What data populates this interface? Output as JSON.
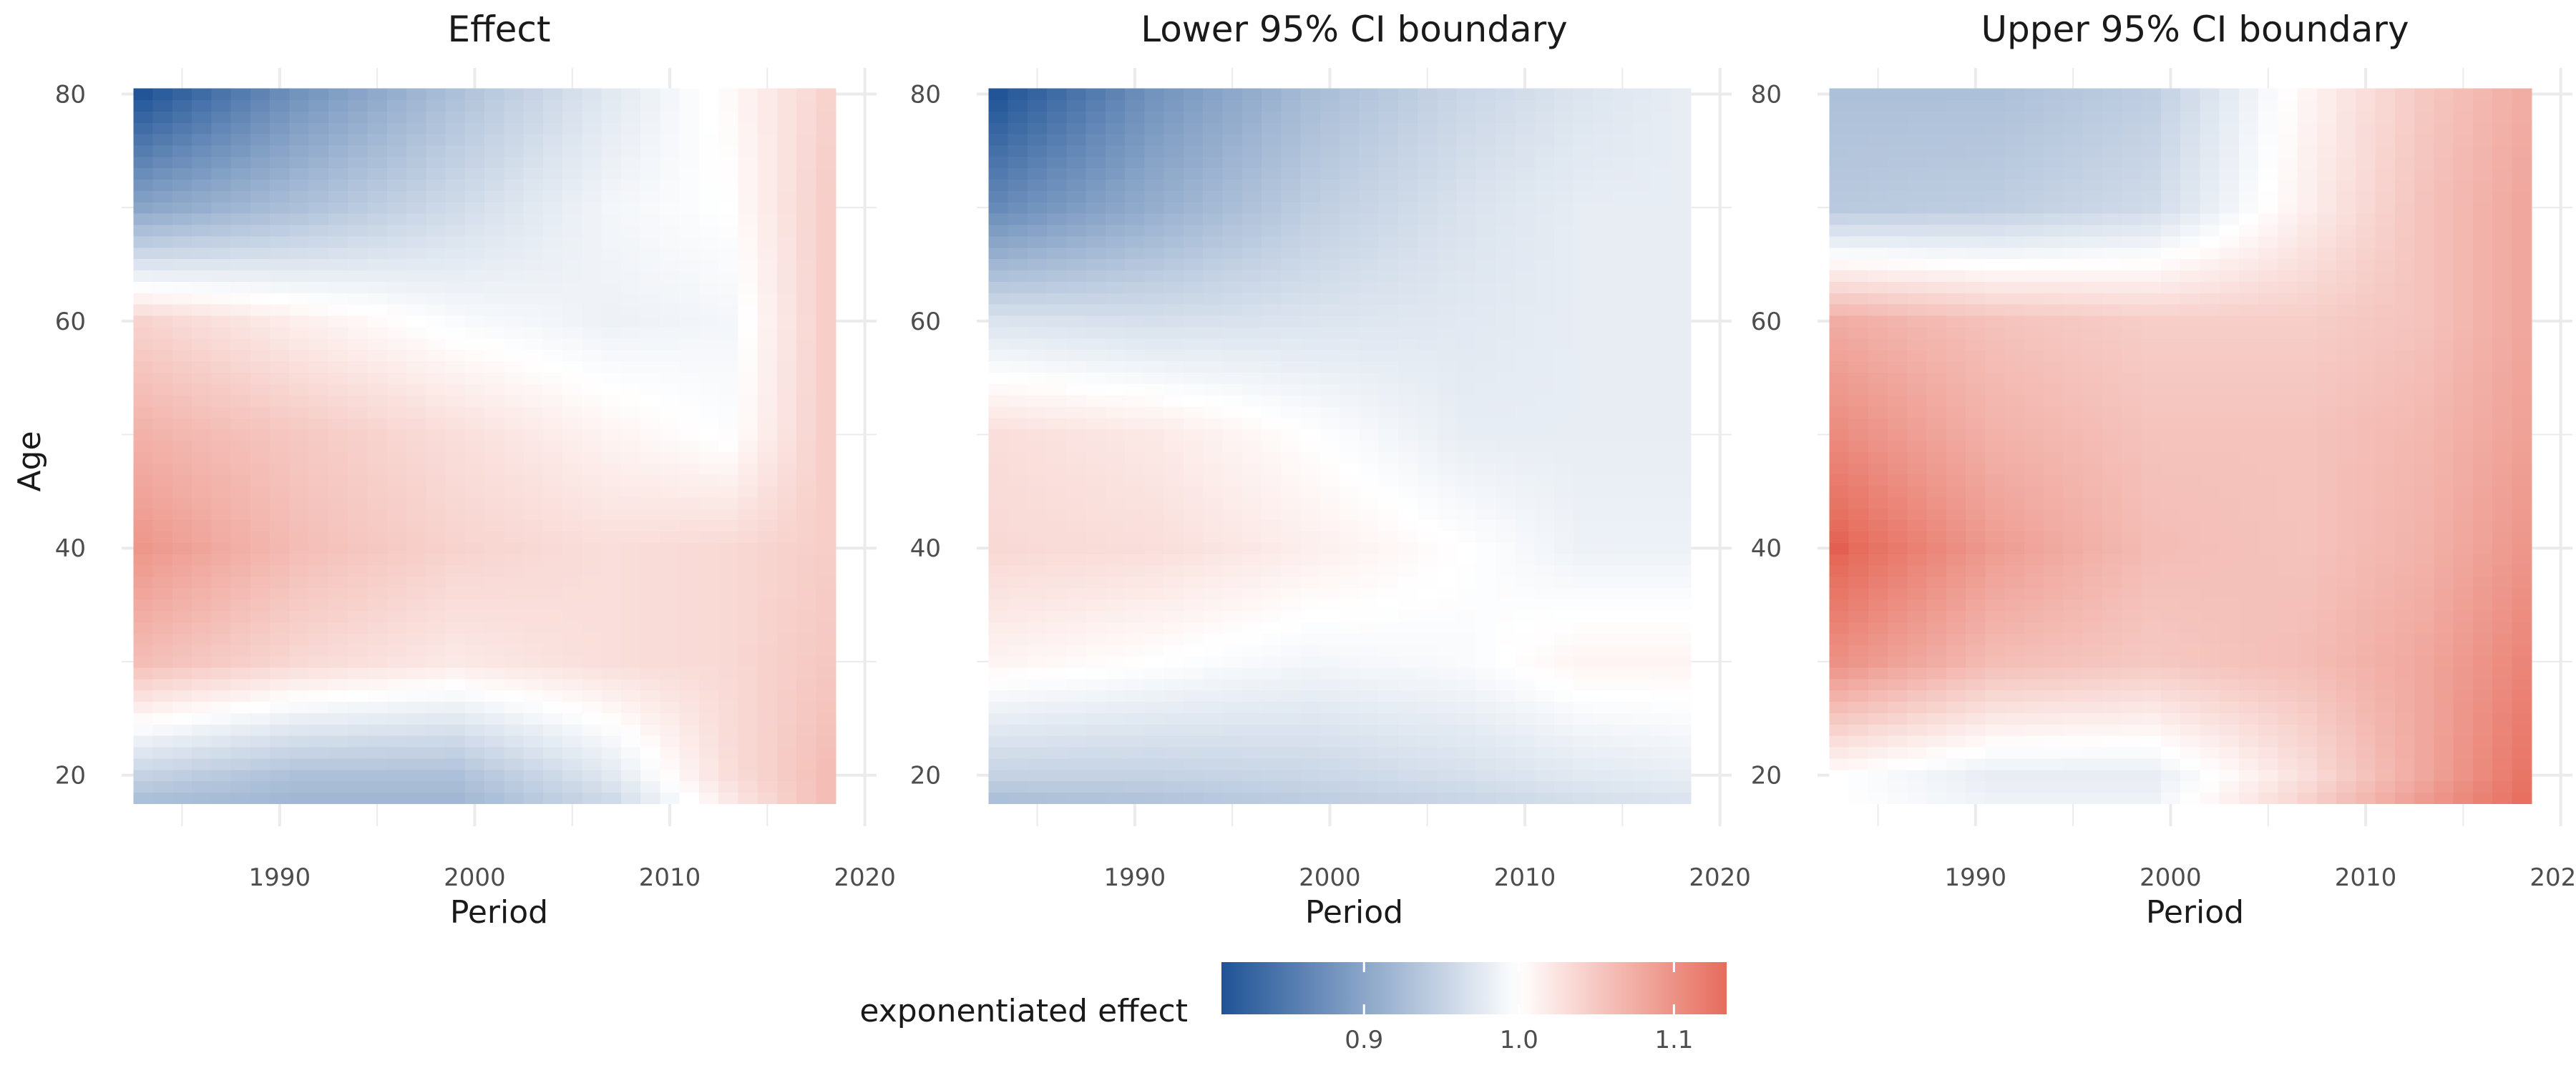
{
  "chart_data": {
    "type": "heatmap",
    "shared": {
      "xlabel": "Period",
      "ylabel": "Age",
      "x_ticks": [
        1990,
        2000,
        2010,
        2020
      ],
      "y_ticks": [
        20,
        40,
        60,
        80
      ],
      "xlim": [
        1981.9,
        2020.6
      ],
      "ylim": [
        15.5,
        82.3
      ],
      "grid": true,
      "cell_x_range": [
        1982.5,
        2018.5
      ],
      "cell_y_range": [
        17.5,
        80.5
      ],
      "cell_x_step": 1,
      "cell_y_step": 1
    },
    "legend": {
      "title": "exponentiated effect",
      "placement": "bottom",
      "ticks": [
        0.9,
        1.0,
        1.1
      ],
      "tick_labels": [
        "0.9",
        "1.0",
        "1.1"
      ],
      "range": [
        0.808,
        1.134
      ],
      "colors": {
        "low": "#1f5396",
        "mid": "#ffffff",
        "high": "#e66c5c",
        "max": "#d22a28"
      }
    },
    "panels": [
      {
        "title": "Effect",
        "ages": [
          80,
          70,
          60,
          50,
          40,
          30,
          20,
          18
        ],
        "periods": [
          1983,
          1991,
          1999,
          2007,
          2013,
          2018
        ],
        "values": [
          [
            0.81,
            0.88,
            0.93,
            0.975,
            1.005,
            1.04
          ],
          [
            0.9,
            0.93,
            0.96,
            0.99,
            1.0,
            1.045
          ],
          [
            1.04,
            1.015,
            0.995,
            0.985,
            0.99,
            1.045
          ],
          [
            1.07,
            1.05,
            1.03,
            1.01,
            0.998,
            1.045
          ],
          [
            1.095,
            1.06,
            1.04,
            1.03,
            1.035,
            1.045
          ],
          [
            1.06,
            1.035,
            1.02,
            1.03,
            1.035,
            1.05
          ],
          [
            0.95,
            0.93,
            0.93,
            0.975,
            1.03,
            1.06
          ],
          [
            0.93,
            0.92,
            0.92,
            0.96,
            1.02,
            1.06
          ]
        ]
      },
      {
        "title": "Lower 95% CI boundary",
        "ages": [
          80,
          70,
          60,
          50,
          40,
          30,
          20,
          18
        ],
        "periods": [
          1983,
          1991,
          1999,
          2007,
          2013,
          2018
        ],
        "values": [
          [
            0.81,
            0.88,
            0.925,
            0.955,
            0.97,
            0.98
          ],
          [
            0.87,
            0.91,
            0.945,
            0.968,
            0.98,
            0.98
          ],
          [
            0.97,
            0.965,
            0.97,
            0.975,
            0.98,
            0.98
          ],
          [
            1.03,
            1.02,
            1.0,
            0.98,
            0.98,
            0.98
          ],
          [
            1.035,
            1.03,
            1.015,
            1.0,
            0.985,
            0.985
          ],
          [
            1.01,
            1.0,
            0.99,
            0.995,
            1.01,
            1.01
          ],
          [
            0.95,
            0.95,
            0.955,
            0.965,
            0.975,
            0.98
          ],
          [
            0.93,
            0.935,
            0.945,
            0.955,
            0.965,
            0.97
          ]
        ]
      },
      {
        "title": "Upper 95% CI boundary",
        "ages": [
          80,
          70,
          60,
          50,
          40,
          30,
          20,
          18
        ],
        "periods": [
          1983,
          1991,
          1999,
          2007,
          2013,
          2018
        ],
        "values": [
          [
            0.93,
            0.93,
            0.945,
            1.01,
            1.05,
            1.075
          ],
          [
            0.94,
            0.945,
            0.96,
            1.015,
            1.055,
            1.08
          ],
          [
            1.075,
            1.055,
            1.045,
            1.045,
            1.055,
            1.08
          ],
          [
            1.105,
            1.07,
            1.055,
            1.055,
            1.065,
            1.085
          ],
          [
            1.14,
            1.09,
            1.06,
            1.055,
            1.07,
            1.095
          ],
          [
            1.1,
            1.06,
            1.05,
            1.06,
            1.08,
            1.11
          ],
          [
            1.0,
            0.98,
            0.98,
            1.03,
            1.08,
            1.125
          ],
          [
            1.0,
            0.985,
            0.985,
            1.04,
            1.09,
            1.13
          ]
        ]
      }
    ]
  }
}
